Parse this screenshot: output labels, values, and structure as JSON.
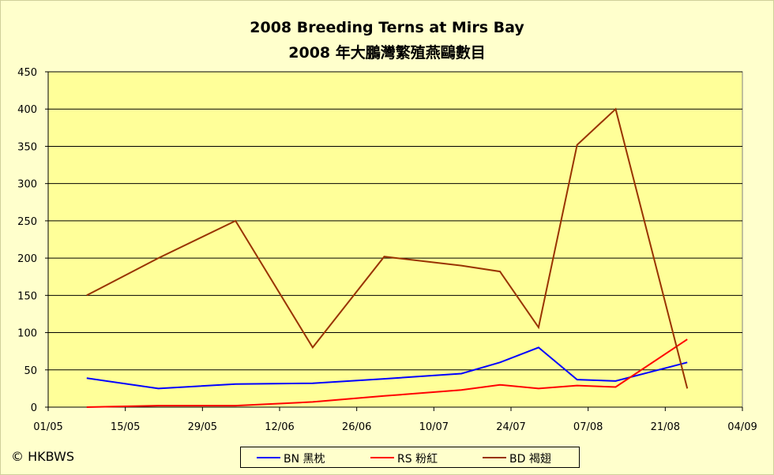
{
  "chart_data": {
    "type": "line",
    "title": "2008 Breeding Terns at Mirs Bay",
    "subtitle": "2008 年大鵬灣繁殖燕鷗數目",
    "y_ticks": [
      "0",
      "50",
      "100",
      "150",
      "200",
      "250",
      "300",
      "350",
      "400",
      "450"
    ],
    "x_ticks": [
      "01/05",
      "15/05",
      "29/05",
      "12/06",
      "26/06",
      "10/07",
      "24/07",
      "07/08",
      "21/08",
      "04/09"
    ],
    "xlim": [
      "01/05",
      "04/09"
    ],
    "ylim": [
      0,
      450
    ],
    "grid": true,
    "legend_position": "bottom",
    "series": [
      {
        "name": "BN 黑枕",
        "color": "#0000ff",
        "x": [
          "08/05",
          "21/05",
          "04/06",
          "18/06",
          "01/07",
          "15/07",
          "22/07",
          "29/07",
          "05/08",
          "12/08",
          "25/08"
        ],
        "values": [
          39,
          25,
          31,
          32,
          38,
          45,
          60,
          80,
          37,
          35,
          60
        ]
      },
      {
        "name": "RS 粉紅",
        "color": "#ff0000",
        "x": [
          "08/05",
          "21/05",
          "04/06",
          "18/06",
          "01/07",
          "15/07",
          "22/07",
          "29/07",
          "05/08",
          "12/08",
          "25/08"
        ],
        "values": [
          0,
          2,
          2,
          7,
          15,
          23,
          30,
          25,
          29,
          27,
          91
        ]
      },
      {
        "name": "BD 褐翅",
        "color": "#993300",
        "x": [
          "08/05",
          "21/05",
          "04/06",
          "18/06",
          "01/07",
          "15/07",
          "22/07",
          "29/07",
          "05/08",
          "12/08",
          "25/08"
        ],
        "values": [
          150,
          200,
          250,
          80,
          202,
          190,
          182,
          107,
          352,
          400,
          25
        ]
      }
    ]
  },
  "footer": {
    "copyright": "© HKBWS"
  }
}
